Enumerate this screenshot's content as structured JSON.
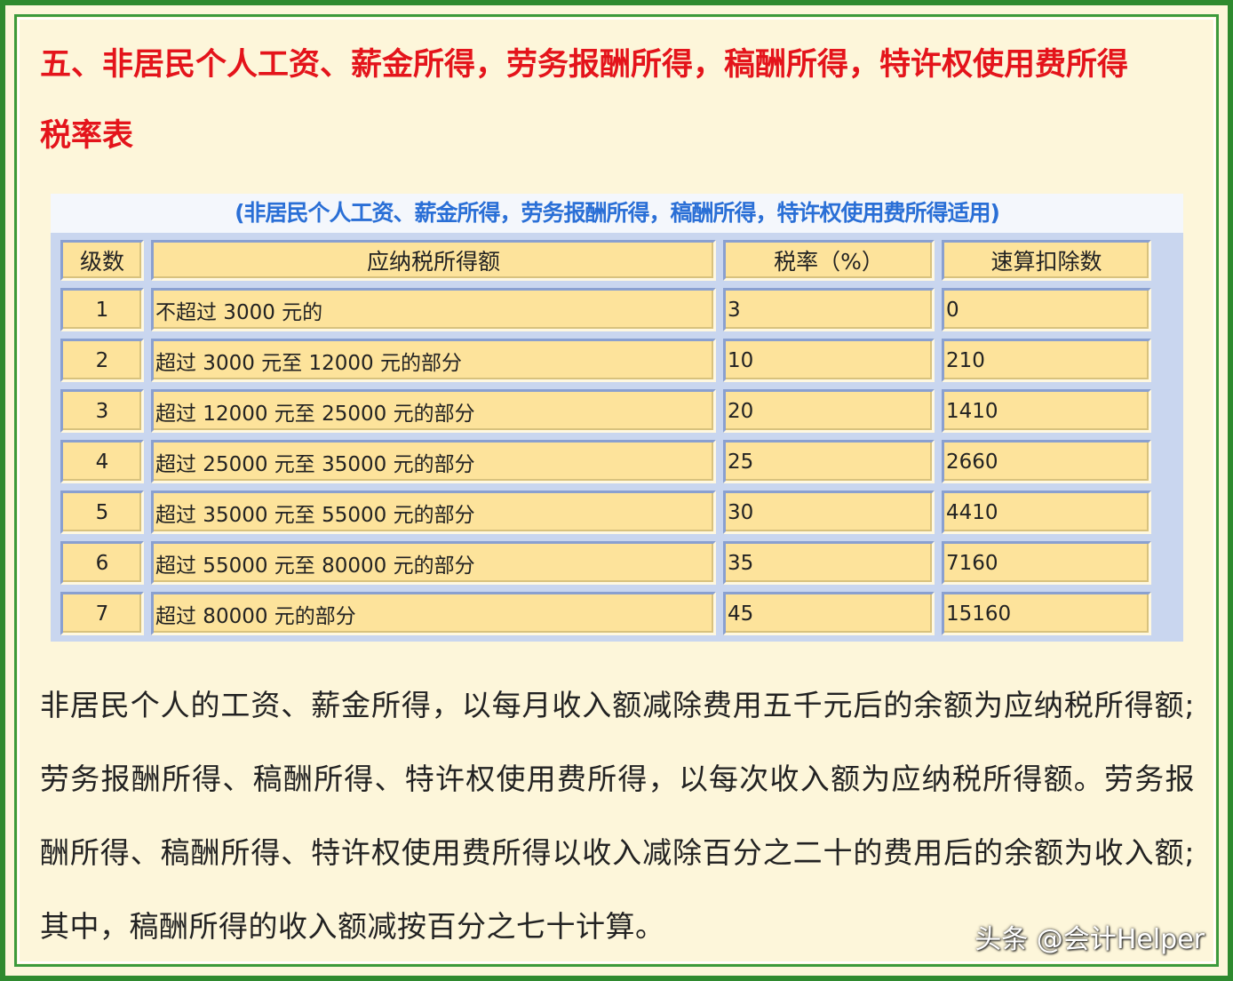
{
  "heading": {
    "line1": "五、非居民个人工资、薪金所得，劳务报酬所得，稿酬所得，特许权使用费所得",
    "line2": "税率表"
  },
  "table": {
    "caption": "(非居民个人工资、薪金所得，劳务报酬所得，稿酬所得，特许权使用费所得适用)",
    "headers": [
      "级数",
      "应纳税所得额",
      "税率（%）",
      "速算扣除数"
    ],
    "rows": [
      [
        "1",
        "不超过 3000 元的",
        "3",
        "0"
      ],
      [
        "2",
        "超过 3000 元至 12000 元的部分",
        "10",
        "210"
      ],
      [
        "3",
        "超过 12000 元至 25000 元的部分",
        "20",
        "1410"
      ],
      [
        "4",
        "超过 25000 元至 35000 元的部分",
        "25",
        "2660"
      ],
      [
        "5",
        "超过 35000 元至 55000 元的部分",
        "30",
        "4410"
      ],
      [
        "6",
        "超过 55000 元至 80000 元的部分",
        "35",
        "7160"
      ],
      [
        "7",
        "超过 80000 元的部分",
        "45",
        "15160"
      ]
    ]
  },
  "paragraph": "非居民个人的工资、薪金所得，以每月收入额减除费用五千元后的余额为应纳税所得额;劳务报酬所得、稿酬所得、特许权使用费所得，以每次收入额为应纳税所得额。劳务报酬所得、稿酬所得、特许权使用费所得以收入减除百分之二十的费用后的余额为收入额;其中，稿酬所得的收入额减按百分之七十计算。",
  "watermark": "头条 @会计Helper"
}
